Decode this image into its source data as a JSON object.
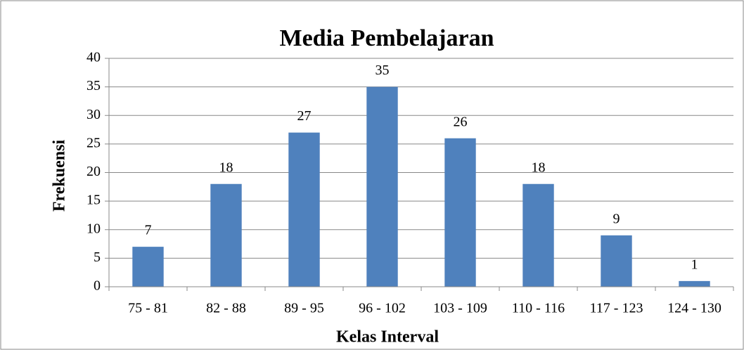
{
  "chart_data": {
    "type": "bar",
    "title": "Media Pembelajaran",
    "x_label": "Kelas Interval",
    "y_label": "Frekuensi",
    "categories": [
      "75 - 81",
      "82 - 88",
      "89 - 95",
      "96 - 102",
      "103 - 109",
      "110 - 116",
      "117 - 123",
      "124 - 130"
    ],
    "values": [
      7,
      18,
      27,
      35,
      26,
      18,
      9,
      1
    ],
    "color": "#4f81bd",
    "ylim": [
      0,
      40
    ],
    "yticks": [
      0,
      5,
      10,
      15,
      20,
      25,
      30,
      35,
      40
    ],
    "grid": true
  }
}
